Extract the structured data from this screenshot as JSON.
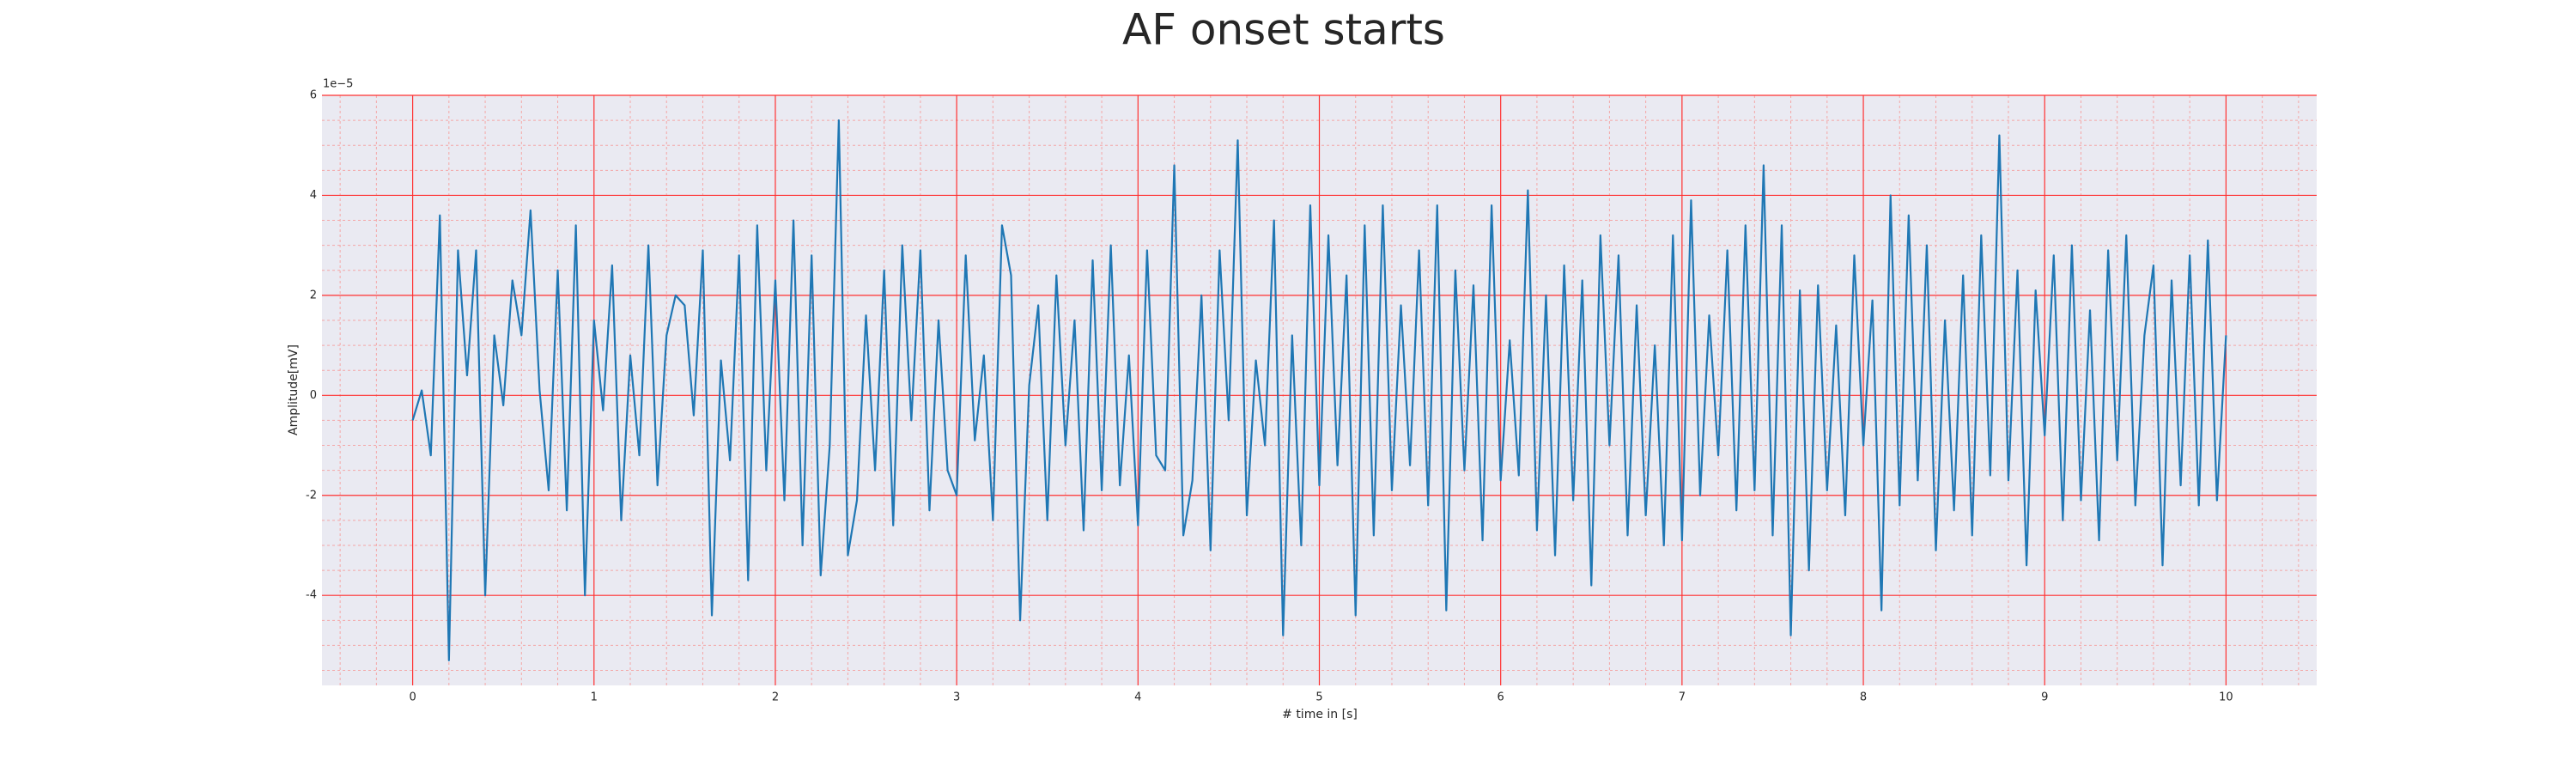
{
  "chart_data": {
    "type": "line",
    "title": "AF onset starts",
    "xlabel": "# time in [s]",
    "ylabel": "Amplitude[mV]",
    "offset_label": "1e−5",
    "color": "#1f77b4",
    "grid": true,
    "minor_grid": true,
    "xlim": [
      -0.5,
      10.5
    ],
    "ylim": [
      -5.8,
      6
    ],
    "xticks": [
      0,
      1,
      2,
      3,
      4,
      5,
      6,
      7,
      8,
      9,
      10
    ],
    "yticks": [
      -4,
      -2,
      0,
      2,
      4,
      6
    ],
    "xminorticks": [
      -0.4,
      -0.2,
      0.2,
      0.4,
      0.6,
      0.8,
      1.2,
      1.4,
      1.6,
      1.8,
      2.2,
      2.4,
      2.6,
      2.8,
      3.2,
      3.4,
      3.6,
      3.8,
      4.2,
      4.4,
      4.6,
      4.8,
      5.2,
      5.4,
      5.6,
      5.8,
      6.2,
      6.4,
      6.6,
      6.8,
      7.2,
      7.4,
      7.6,
      7.8,
      8.2,
      8.4,
      8.6,
      8.8,
      9.2,
      9.4,
      9.6,
      9.8,
      10.2,
      10.4
    ],
    "yminorticks": [
      -5.5,
      -5,
      -4.5,
      -3.5,
      -3,
      -2.5,
      -1.5,
      -1,
      -0.5,
      0.5,
      1,
      1.5,
      2.5,
      3,
      3.5,
      4.5,
      5,
      5.5
    ],
    "x": [
      0,
      0.05,
      0.1,
      0.15,
      0.2,
      0.25,
      0.3,
      0.35,
      0.4,
      0.45,
      0.5,
      0.55,
      0.6,
      0.65,
      0.7,
      0.75,
      0.8,
      0.85,
      0.9,
      0.95,
      1,
      1.05,
      1.1,
      1.15,
      1.2,
      1.25,
      1.3,
      1.35,
      1.4,
      1.45,
      1.5,
      1.55,
      1.6,
      1.65,
      1.7,
      1.75,
      1.8,
      1.85,
      1.9,
      1.95,
      2,
      2.05,
      2.1,
      2.15,
      2.2,
      2.25,
      2.3,
      2.35,
      2.4,
      2.45,
      2.5,
      2.55,
      2.6,
      2.65,
      2.7,
      2.75,
      2.8,
      2.85,
      2.9,
      2.95,
      3,
      3.05,
      3.1,
      3.15,
      3.2,
      3.25,
      3.3,
      3.35,
      3.4,
      3.45,
      3.5,
      3.55,
      3.6,
      3.65,
      3.7,
      3.75,
      3.8,
      3.85,
      3.9,
      3.95,
      4,
      4.05,
      4.1,
      4.15,
      4.2,
      4.25,
      4.3,
      4.35,
      4.4,
      4.45,
      4.5,
      4.55,
      4.6,
      4.65,
      4.7,
      4.75,
      4.8,
      4.85,
      4.9,
      4.95,
      5,
      5.05,
      5.1,
      5.15,
      5.2,
      5.25,
      5.3,
      5.35,
      5.4,
      5.45,
      5.5,
      5.55,
      5.6,
      5.65,
      5.7,
      5.75,
      5.8,
      5.85,
      5.9,
      5.95,
      6,
      6.05,
      6.1,
      6.15,
      6.2,
      6.25,
      6.3,
      6.35,
      6.4,
      6.45,
      6.5,
      6.55,
      6.6,
      6.65,
      6.7,
      6.75,
      6.8,
      6.85,
      6.9,
      6.95,
      7,
      7.05,
      7.1,
      7.15,
      7.2,
      7.25,
      7.3,
      7.35,
      7.4,
      7.45,
      7.5,
      7.55,
      7.6,
      7.65,
      7.7,
      7.75,
      7.8,
      7.85,
      7.9,
      7.95,
      8,
      8.05,
      8.1,
      8.15,
      8.2,
      8.25,
      8.3,
      8.35,
      8.4,
      8.45,
      8.5,
      8.55,
      8.6,
      8.65,
      8.7,
      8.75,
      8.8,
      8.85,
      8.9,
      8.95,
      9,
      9.05,
      9.1,
      9.15,
      9.2,
      9.25,
      9.3,
      9.35,
      9.4,
      9.45,
      9.5,
      9.55,
      9.6,
      9.65,
      9.7,
      9.75,
      9.8,
      9.85,
      9.9,
      9.95,
      10
    ],
    "values": [
      -0.5,
      0.1,
      -1.2,
      3.6,
      -5.3,
      2.9,
      0.4,
      2.9,
      -4.0,
      1.2,
      -0.2,
      2.3,
      1.2,
      3.7,
      0.1,
      -1.9,
      2.5,
      -2.3,
      3.4,
      -4.0,
      1.5,
      -0.3,
      2.6,
      -2.5,
      0.8,
      -1.2,
      3.0,
      -1.8,
      1.2,
      2.0,
      1.8,
      -0.4,
      2.9,
      -4.4,
      0.7,
      -1.3,
      2.8,
      -3.7,
      3.4,
      -1.5,
      2.3,
      -2.1,
      3.5,
      -3.0,
      2.8,
      -3.6,
      -1.0,
      5.5,
      -3.2,
      -2.1,
      1.6,
      -1.5,
      2.5,
      -2.6,
      3.0,
      -0.5,
      2.9,
      -2.3,
      1.5,
      -1.5,
      -2.0,
      2.8,
      -0.9,
      0.8,
      -2.5,
      3.4,
      2.4,
      -4.5,
      0.2,
      1.8,
      -2.5,
      2.4,
      -1.0,
      1.5,
      -2.7,
      2.7,
      -1.9,
      3.0,
      -1.8,
      0.8,
      -2.6,
      2.9,
      -1.2,
      -1.5,
      4.6,
      -2.8,
      -1.7,
      2.0,
      -3.1,
      2.9,
      -0.5,
      5.1,
      -2.4,
      0.7,
      -1.0,
      3.5,
      -4.8,
      1.2,
      -3.0,
      3.8,
      -1.8,
      3.2,
      -1.4,
      2.4,
      -4.4,
      3.4,
      -2.8,
      3.8,
      -1.9,
      1.8,
      -1.4,
      2.9,
      -2.2,
      3.8,
      -4.3,
      2.5,
      -1.5,
      2.2,
      -2.9,
      3.8,
      -1.7,
      1.1,
      -1.6,
      4.1,
      -2.7,
      2.0,
      -3.2,
      2.6,
      -2.1,
      2.3,
      -3.8,
      3.2,
      -1.0,
      2.8,
      -2.8,
      1.8,
      -2.4,
      1.0,
      -3.0,
      3.2,
      -2.9,
      3.9,
      -2.0,
      1.6,
      -1.2,
      2.9,
      -2.3,
      3.4,
      -1.9,
      4.6,
      -2.8,
      3.4,
      -4.8,
      2.1,
      -3.5,
      2.2,
      -1.9,
      1.4,
      -2.4,
      2.8,
      -1.0,
      1.9,
      -4.3,
      4.0,
      -2.2,
      3.6,
      -1.7,
      3.0,
      -3.1,
      1.5,
      -2.3,
      2.4,
      -2.8,
      3.2,
      -1.6,
      5.2,
      -1.7,
      2.5,
      -3.4,
      2.1,
      -0.8,
      2.8,
      -2.5,
      3.0,
      -2.1,
      1.7,
      -2.9,
      2.9,
      -1.3,
      3.2,
      -2.2,
      1.2,
      2.6,
      -3.4,
      2.3,
      -1.8,
      2.8,
      -2.2,
      3.1,
      -2.1,
      1.2
    ]
  }
}
